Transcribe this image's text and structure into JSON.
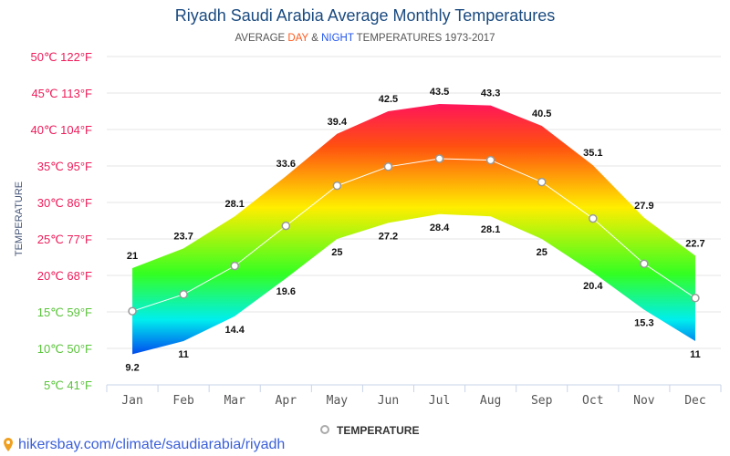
{
  "title": "Riyadh Saudi Arabia Average Monthly Temperatures",
  "subtitle": {
    "pre": "AVERAGE ",
    "day": "DAY",
    "mid": " & ",
    "night": "NIGHT",
    "post": " TEMPERATURES 1973-2017"
  },
  "colors": {
    "day": "#ff5a1f",
    "night": "#2255ee",
    "hot_tick": "#ee1c5a",
    "cool_tick": "#5bc43c"
  },
  "footer": "hikersbay.com/climate/saudiarabia/riyadh",
  "chart_data": {
    "type": "area",
    "ylabel": "TEMPERATURE",
    "ylim": [
      5,
      50
    ],
    "y_ticks": [
      "5℃ 41°F",
      "10℃ 50°F",
      "15℃ 59°F",
      "20℃ 68°F",
      "25℃ 77°F",
      "30℃ 86°F",
      "35℃ 95°F",
      "40℃ 104°F",
      "45℃ 113°F",
      "50℃ 122°F"
    ],
    "categories": [
      "Jan",
      "Feb",
      "Mar",
      "Apr",
      "May",
      "Jun",
      "Jul",
      "Aug",
      "Sep",
      "Oct",
      "Nov",
      "Dec"
    ],
    "high": [
      21,
      23.7,
      28.1,
      33.6,
      39.4,
      42.5,
      43.5,
      43.3,
      40.5,
      35.1,
      27.9,
      22.7
    ],
    "low": [
      9.2,
      11,
      14.4,
      19.6,
      25,
      27.2,
      28.4,
      28.1,
      25,
      20.4,
      15.3,
      11
    ],
    "series": [
      {
        "name": "TEMPERATURE",
        "values": [
          15.1,
          17.4,
          21.3,
          26.8,
          32.3,
          34.9,
          36,
          35.8,
          32.8,
          27.8,
          21.6,
          16.9
        ]
      }
    ],
    "legend": "bottom",
    "grid": true
  }
}
